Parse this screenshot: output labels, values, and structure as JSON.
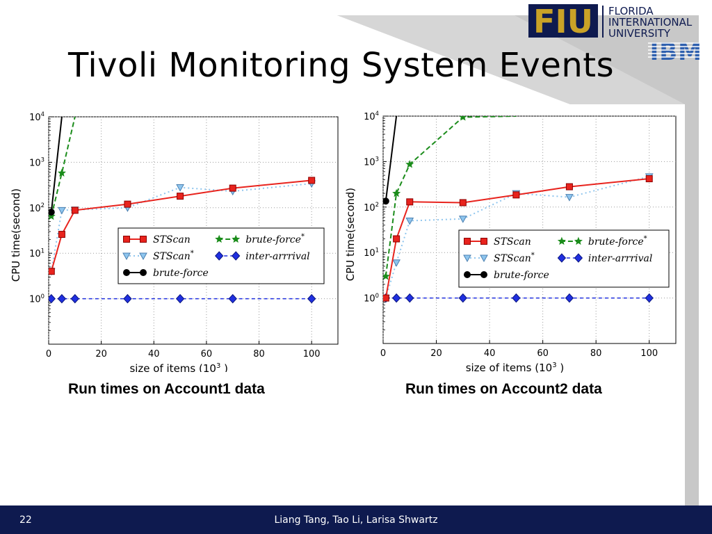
{
  "slide": {
    "title": "Tivoli Monitoring System Events",
    "page_number": "22",
    "authors": "Liang Tang, Tao Li, Larisa Shwartz"
  },
  "logo": {
    "fiu_text": "FIU",
    "name_line1": "FLORIDA",
    "name_line2": "INTERNATIONAL",
    "name_line3": "UNIVERSITY",
    "ibm_text": "IBM"
  },
  "captions": [
    "Run times on Account1 data",
    "Run times on Account2 data"
  ],
  "colors": {
    "footer_bg": "#0e1a4f",
    "stscan": "#e8231d",
    "stscan_star": "#8ec5ee",
    "brute_force": "#000000",
    "brute_force_star": "#1b8c1b",
    "inter_arrival": "#1f2fe0"
  },
  "chart_data": [
    {
      "type": "line",
      "xlabel": "size of items (10^3 )",
      "ylabel": "CPU time(second)",
      "y_scale": "log",
      "xlim": [
        0,
        110
      ],
      "ylim": [
        0.1,
        10000
      ],
      "xticks": [
        "0",
        "20",
        "40",
        "60",
        "80",
        "100"
      ],
      "yticks": [
        "10^0",
        "10^1",
        "10^2",
        "10^3",
        "10^4"
      ],
      "grid": true,
      "legend_position": "center-right",
      "series": [
        {
          "name": "STScan",
          "x": [
            1,
            5,
            10,
            30,
            50,
            70,
            100
          ],
          "y": [
            4,
            26,
            88,
            120,
            180,
            270,
            400
          ]
        },
        {
          "name": "STScan*",
          "x": [
            1,
            5,
            10,
            30,
            50,
            70,
            100
          ],
          "y": [
            4,
            88,
            90,
            100,
            280,
            230,
            340
          ]
        },
        {
          "name": "brute-force",
          "x": [
            1,
            5
          ],
          "y": [
            80,
            10000
          ]
        },
        {
          "name": "brute-force*",
          "x": [
            1,
            5,
            10
          ],
          "y": [
            65,
            580,
            10000
          ]
        },
        {
          "name": "inter-arrrival",
          "x": [
            1,
            5,
            10,
            30,
            50,
            70,
            100
          ],
          "y": [
            1,
            1,
            1,
            1,
            1,
            1,
            1
          ]
        }
      ]
    },
    {
      "type": "line",
      "xlabel": "size of items (10^3 )",
      "ylabel": "CPU time(second)",
      "y_scale": "log",
      "xlim": [
        0,
        110
      ],
      "ylim": [
        0.1,
        10000
      ],
      "xticks": [
        "0",
        "20",
        "40",
        "60",
        "80",
        "100"
      ],
      "yticks": [
        "10^0",
        "10^1",
        "10^2",
        "10^3",
        "10^4"
      ],
      "grid": true,
      "legend_position": "center-right",
      "series": [
        {
          "name": "STScan",
          "x": [
            1,
            5,
            10,
            30,
            50,
            70,
            100
          ],
          "y": [
            1,
            20,
            130,
            125,
            185,
            280,
            420
          ]
        },
        {
          "name": "STScan*",
          "x": [
            1,
            5,
            10,
            30,
            50,
            70,
            100
          ],
          "y": [
            1,
            6,
            50,
            55,
            200,
            165,
            470
          ]
        },
        {
          "name": "brute-force",
          "x": [
            1,
            5
          ],
          "y": [
            135,
            10000
          ]
        },
        {
          "name": "brute-force*",
          "x": [
            1,
            5,
            10,
            30,
            50
          ],
          "y": [
            3,
            200,
            870,
            9500,
            10000
          ]
        },
        {
          "name": "inter-arrrival",
          "x": [
            1,
            5,
            10,
            30,
            50,
            70,
            100
          ],
          "y": [
            1,
            1,
            1,
            1,
            1,
            1,
            1
          ]
        }
      ]
    }
  ]
}
